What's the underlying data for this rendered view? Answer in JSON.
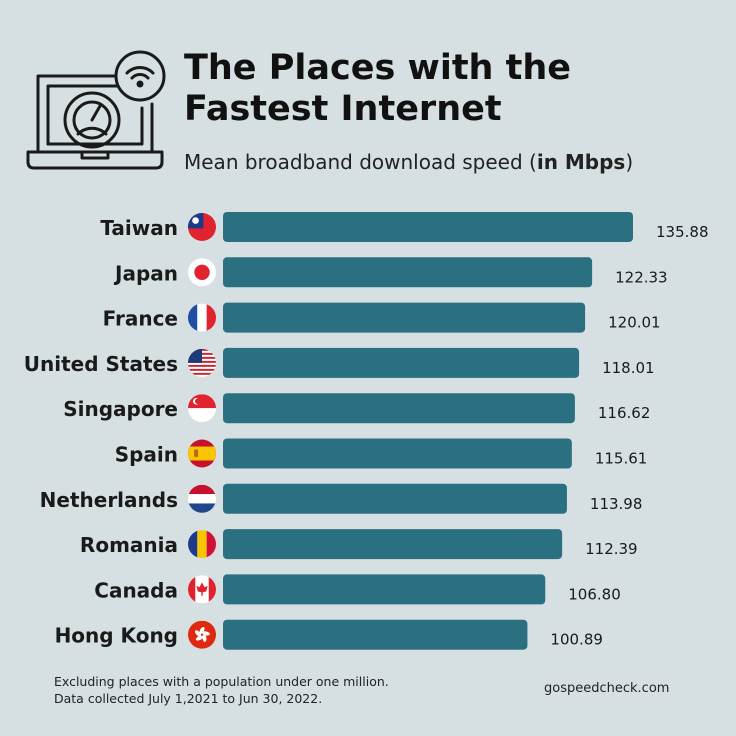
{
  "title_line1": "The Places with the",
  "title_line2": "Fastest Internet",
  "subtitle_main": "Mean broadband download speed (",
  "subtitle_unit": "in Mbps",
  "subtitle_end": ")",
  "footnote_line1": "Excluding places with a population under one million.",
  "footnote_line2": "Data collected July 1,2021 to Jun 30, 2022.",
  "source": "gospeedcheck.com",
  "colors": {
    "bar": "#2a7080",
    "background": "#d6e0e3"
  },
  "chart_data": {
    "type": "bar",
    "orientation": "horizontal",
    "categories": [
      "Taiwan",
      "Japan",
      "France",
      "United States",
      "Singapore",
      "Spain",
      "Netherlands",
      "Romania",
      "Canada",
      "Hong Kong"
    ],
    "values": [
      135.88,
      122.33,
      120.01,
      118.01,
      116.62,
      115.61,
      113.98,
      112.39,
      106.8,
      100.89
    ],
    "value_labels": [
      "135.88",
      "122.33",
      "120.01",
      "118.01",
      "116.62",
      "115.61",
      "113.98",
      "112.39",
      "106.80",
      "100.89"
    ],
    "flags": [
      "taiwan-flag",
      "japan-flag",
      "france-flag",
      "usa-flag",
      "singapore-flag",
      "spain-flag",
      "netherlands-flag",
      "romania-flag",
      "canada-flag",
      "hong-kong-flag"
    ],
    "xlim": [
      0,
      135.88
    ],
    "grid": false,
    "legend": false
  }
}
